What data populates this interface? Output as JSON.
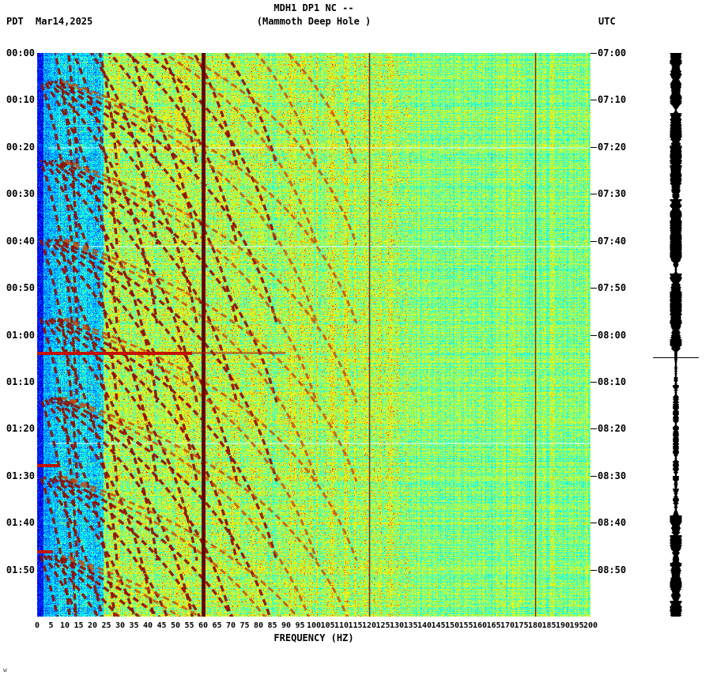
{
  "header": {
    "tz_left": "PDT",
    "date": "Mar14,2025",
    "title": "MDH1 DP1 NC --",
    "subtitle": "(Mammoth Deep Hole )",
    "tz_right": "UTC"
  },
  "x_axis": {
    "label": "FREQUENCY (HZ)",
    "ticks": [
      "0",
      "5",
      "10",
      "15",
      "20",
      "25",
      "30",
      "35",
      "40",
      "45",
      "50",
      "55",
      "60",
      "65",
      "70",
      "75",
      "80",
      "85",
      "90",
      "95",
      "100",
      "105",
      "110",
      "115",
      "120",
      "125",
      "130",
      "135",
      "140",
      "145",
      "150",
      "155",
      "160",
      "165",
      "170",
      "175",
      "180",
      "185",
      "190",
      "195",
      "200"
    ]
  },
  "y_axis_left": [
    "00:00",
    "00:10",
    "00:20",
    "00:30",
    "00:40",
    "00:50",
    "01:00",
    "01:10",
    "01:20",
    "01:30",
    "01:40",
    "01:50"
  ],
  "y_axis_right": [
    "07:00",
    "07:10",
    "07:20",
    "07:30",
    "07:40",
    "07:50",
    "08:00",
    "08:10",
    "08:20",
    "08:30",
    "08:40",
    "08:50"
  ],
  "corner_glyph": "w",
  "chart_data": {
    "type": "heatmap",
    "title": "MDH1 DP1 NC -- (Mammoth Deep Hole ) seismic spectrogram",
    "xlabel": "FREQUENCY (HZ)",
    "x_range_hz": [
      0,
      200
    ],
    "x_tick_step_hz": 5,
    "time_axis": {
      "start_pdt": "00:00",
      "end_pdt": "02:00",
      "start_utc": "07:00",
      "end_utc": "09:00",
      "tick_step_minutes": 10,
      "date": "Mar14,2025",
      "direction": "time increases downward"
    },
    "colormap": "jet",
    "features": {
      "powerline_harmonics_hz": [
        60,
        120,
        180
      ],
      "powerline_main_hz": 60,
      "quiet_blue_band_hz": [
        3,
        24
      ],
      "active_band_hz": [
        24,
        130
      ],
      "harmonic_glide_arcs": {
        "description": "repeating upward-gliding harmonic arcs (dark red), fundamental saturating near 16 Hz with ~8 overtones reaching ~130 Hz",
        "fundamental_asymptote_hz": 16,
        "harmonic_count": 8,
        "repeat_interval_minutes": 17
      },
      "broadband_red_events_pdt": [
        "01:04",
        "01:27",
        "01:45"
      ],
      "pale_horizontal_rows_pdt": [
        "00:20",
        "00:41",
        "01:23"
      ],
      "crosshair_time_pdt": "01:05"
    },
    "side_trace": {
      "description": "black seismogram amplitude strip on right edge",
      "crosshair_marker": true
    }
  },
  "colors": {
    "dark_red_line": "#7c0000",
    "arc_red": "#940c00",
    "event_red": "#c41200",
    "trace_black": "#000000",
    "background": "#ffffff"
  }
}
